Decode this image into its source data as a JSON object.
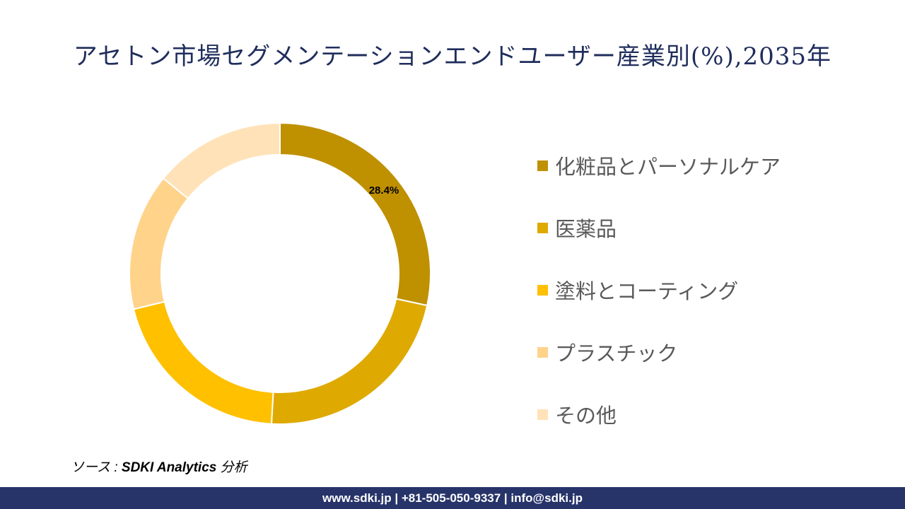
{
  "title": "アセトン市場セグメンテーションエンドユーザー産業別(%),2035年",
  "chart_data": {
    "type": "donut",
    "title": "アセトン市場セグメンテーションエンドユーザー産業別(%),2035年",
    "categories": [
      "化粧品とパーソナルケア",
      "医薬品",
      "塗料とコーティング",
      "プラスチック",
      "その他"
    ],
    "values": [
      28.4,
      22.5,
      20.3,
      14.7,
      14.1
    ],
    "data_labels": [
      "28.4%",
      "",
      "",
      "",
      ""
    ],
    "colors": [
      "#BF9000",
      "#DEA900",
      "#FFC000",
      "#FFD38A",
      "#FFE2B8"
    ],
    "legend_position": "right"
  },
  "source": {
    "prefix": "ソース : ",
    "name": "SDKI Analytics",
    "suffix": " 分析"
  },
  "footer": "www.sdki.jp | +81-505-050-9337 | info@sdki.jp"
}
